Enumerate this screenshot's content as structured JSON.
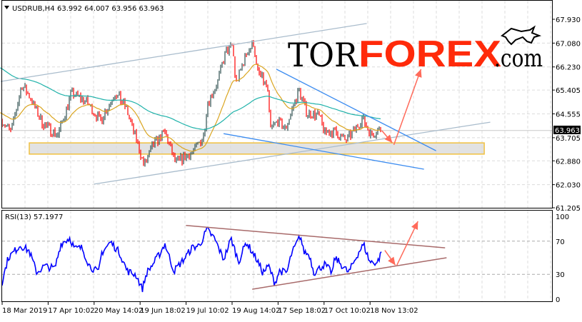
{
  "header": {
    "symbol": "USDRUB,H4",
    "ohlc": "63.992 64.007 63.956 63.963"
  },
  "logo": {
    "part1": "TOR",
    "part2": "FOREX",
    "part3": ".com"
  },
  "colors": {
    "up_bar": "#2f4f4f",
    "down_bar": "#ff0000",
    "ma_fast": "#daa520",
    "ma_slow": "#20b2aa",
    "channel": "#a9bccc",
    "wedge": "#3c8cf0",
    "support_zone_border": "#f0c040",
    "support_zone_fill": "#d8d8d8",
    "arrow": "#ff6a5a",
    "rsi_line": "#0000ff",
    "rsi_trend": "#a86a6a",
    "logo_red": "#ff2a0a"
  },
  "chart_data": [
    {
      "type": "line",
      "title": "USDRUB,H4",
      "price_axis": {
        "ticks": [
          "67.930",
          "67.080",
          "66.230",
          "65.405",
          "64.555",
          "63.705",
          "62.880",
          "62.030",
          "61.205"
        ],
        "ylim": [
          61.205,
          67.93
        ]
      },
      "current_price": "63.963",
      "x_ticks": [
        "18 Mar 2019",
        "17 Apr 10:02",
        "20 May 14:02",
        "19 Jun 18:02",
        "19 Jul 10:02",
        "19 Aug 14:02",
        "17 Sep 18:02",
        "17 Oct 10:02",
        "18 Nov 13:02"
      ],
      "grid": true,
      "series": [
        {
          "kind": "ohlc_bars",
          "points": [
            [
              "2019-03-18",
              64.3
            ],
            [
              "2019-03-24",
              63.9
            ],
            [
              "2019-03-31",
              65.6
            ],
            [
              "2019-04-05",
              65.2
            ],
            [
              "2019-04-14",
              64.2
            ],
            [
              "2019-04-24",
              63.8
            ],
            [
              "2019-05-03",
              65.3
            ],
            [
              "2019-05-13",
              65.0
            ],
            [
              "2019-05-22",
              64.3
            ],
            [
              "2019-06-01",
              65.3
            ],
            [
              "2019-06-08",
              64.8
            ],
            [
              "2019-06-17",
              63.3
            ],
            [
              "2019-06-20",
              62.7
            ],
            [
              "2019-06-27",
              63.5
            ],
            [
              "2019-07-04",
              63.9
            ],
            [
              "2019-07-11",
              62.8
            ],
            [
              "2019-07-23",
              63.2
            ],
            [
              "2019-07-30",
              63.8
            ],
            [
              "2019-08-01",
              64.9
            ],
            [
              "2019-08-08",
              65.7
            ],
            [
              "2019-08-13",
              66.7
            ],
            [
              "2019-08-18",
              67.0
            ],
            [
              "2019-08-20",
              65.6
            ],
            [
              "2019-08-27",
              66.7
            ],
            [
              "2019-09-01",
              67.1
            ],
            [
              "2019-09-03",
              66.1
            ],
            [
              "2019-09-10",
              65.5
            ],
            [
              "2019-09-12",
              64.0
            ],
            [
              "2019-09-17",
              64.3
            ],
            [
              "2019-09-22",
              64.0
            ],
            [
              "2019-09-27",
              64.8
            ],
            [
              "2019-10-01",
              65.4
            ],
            [
              "2019-10-06",
              64.6
            ],
            [
              "2019-10-14",
              64.5
            ],
            [
              "2019-10-18",
              63.9
            ],
            [
              "2019-10-25",
              63.9
            ],
            [
              "2019-11-01",
              63.6
            ],
            [
              "2019-11-06",
              63.9
            ],
            [
              "2019-11-12",
              64.4
            ],
            [
              "2019-11-18",
              63.8
            ],
            [
              "2019-11-23",
              64.0
            ],
            [
              "2019-11-25",
              63.963
            ]
          ]
        },
        {
          "kind": "moving_average_fast"
        },
        {
          "kind": "moving_average_slow"
        }
      ],
      "annotations": [
        {
          "kind": "trendline",
          "style": "channel",
          "from": [
            "2019-03-17",
            65.71
          ],
          "to": [
            "2019-11-15",
            67.78
          ]
        },
        {
          "kind": "trendline",
          "style": "channel",
          "from": [
            "2019-05-18",
            62.05
          ],
          "to": [
            "2020-02-05",
            64.26
          ]
        },
        {
          "kind": "trendline",
          "style": "wedge",
          "from": [
            "2019-09-16",
            66.15
          ],
          "to": [
            "2019-12-31",
            63.24
          ]
        },
        {
          "kind": "trendline",
          "style": "wedge",
          "from": [
            "2019-08-12",
            63.85
          ],
          "to": [
            "2019-12-23",
            62.58
          ]
        },
        {
          "kind": "zone",
          "from": [
            "2019-04-05",
            63.52
          ],
          "to": [
            "2020-02-01",
            63.12
          ]
        },
        {
          "kind": "arrow",
          "from": [
            "2019-11-25",
            63.96
          ],
          "to": [
            "2019-12-02",
            63.52
          ]
        },
        {
          "kind": "arrow",
          "from": [
            "2019-12-03",
            63.45
          ],
          "to": [
            "2019-12-21",
            66.15
          ]
        }
      ]
    },
    {
      "type": "line",
      "title": "RSI(13) 57.1977",
      "y_ticks": [
        "100",
        "70",
        "30",
        "0"
      ],
      "ylim": [
        0,
        100
      ],
      "levels": [
        70,
        30
      ],
      "series": [
        {
          "points": [
            [
              "2019-03-18",
              21
            ],
            [
              "2019-03-22",
              50
            ],
            [
              "2019-03-30",
              65
            ],
            [
              "2019-04-05",
              58
            ],
            [
              "2019-04-10",
              32
            ],
            [
              "2019-04-15",
              40
            ],
            [
              "2019-04-22",
              37
            ],
            [
              "2019-04-26",
              67
            ],
            [
              "2019-05-02",
              74
            ],
            [
              "2019-05-05",
              61
            ],
            [
              "2019-05-10",
              62
            ],
            [
              "2019-05-15",
              40
            ],
            [
              "2019-05-21",
              32
            ],
            [
              "2019-05-23",
              56
            ],
            [
              "2019-05-29",
              69
            ],
            [
              "2019-06-04",
              56
            ],
            [
              "2019-06-09",
              34
            ],
            [
              "2019-06-15",
              29
            ],
            [
              "2019-06-19",
              12
            ],
            [
              "2019-06-22",
              32
            ],
            [
              "2019-06-26",
              42
            ],
            [
              "2019-07-01",
              56
            ],
            [
              "2019-07-04",
              67
            ],
            [
              "2019-07-10",
              34
            ],
            [
              "2019-07-17",
              49
            ],
            [
              "2019-07-22",
              62
            ],
            [
              "2019-07-27",
              65
            ],
            [
              "2019-08-01",
              84
            ],
            [
              "2019-08-06",
              73
            ],
            [
              "2019-08-12",
              48
            ],
            [
              "2019-08-17",
              73
            ],
            [
              "2019-08-22",
              45
            ],
            [
              "2019-08-27",
              69
            ],
            [
              "2019-09-03",
              48
            ],
            [
              "2019-09-07",
              32
            ],
            [
              "2019-09-11",
              40
            ],
            [
              "2019-09-15",
              19
            ],
            [
              "2019-09-18",
              34
            ],
            [
              "2019-09-23",
              32
            ],
            [
              "2019-09-26",
              54
            ],
            [
              "2019-10-02",
              77
            ],
            [
              "2019-10-04",
              58
            ],
            [
              "2019-10-08",
              53
            ],
            [
              "2019-10-11",
              32
            ],
            [
              "2019-10-18",
              42
            ],
            [
              "2019-10-23",
              32
            ],
            [
              "2019-10-25",
              50
            ],
            [
              "2019-11-03",
              32
            ],
            [
              "2019-11-10",
              58
            ],
            [
              "2019-11-13",
              66
            ],
            [
              "2019-11-17",
              45
            ],
            [
              "2019-11-22",
              44
            ],
            [
              "2019-11-25",
              57.2
            ]
          ]
        }
      ],
      "annotations": [
        {
          "kind": "trendline",
          "from": [
            "2019-07-18",
            89
          ],
          "to": [
            "2020-01-06",
            62
          ]
        },
        {
          "kind": "trendline",
          "from": [
            "2019-08-31",
            12
          ],
          "to": [
            "2020-01-07",
            50
          ]
        },
        {
          "kind": "arrow",
          "from": [
            "2019-11-27",
            59
          ],
          "to": [
            "2019-12-04",
            41
          ]
        },
        {
          "kind": "arrow",
          "from": [
            "2019-12-05",
            41
          ],
          "to": [
            "2019-12-19",
            94
          ]
        }
      ]
    }
  ]
}
